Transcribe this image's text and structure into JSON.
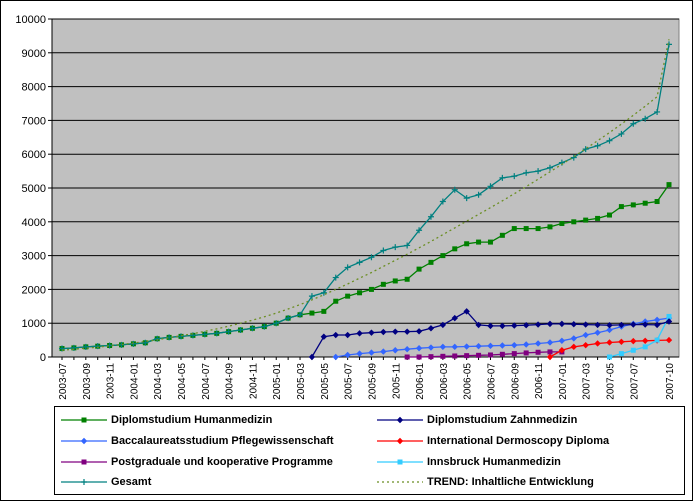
{
  "chart_data": {
    "type": "line",
    "title": "",
    "xlabel": "",
    "ylabel": "",
    "ylim": [
      0,
      10000
    ],
    "yticks": [
      0,
      1000,
      2000,
      3000,
      4000,
      5000,
      6000,
      7000,
      8000,
      9000,
      10000
    ],
    "grid": "horizontal",
    "legend_position": "bottom",
    "plot_background": "#C0C0C0",
    "x_tick_labels": [
      "2003-07",
      "2003-09",
      "2003-11",
      "2004-01",
      "2004-03",
      "2004-05",
      "2004-07",
      "2004-09",
      "2004-11",
      "2005-01",
      "2005-03",
      "2005-05",
      "2005-07",
      "2005-09",
      "2005-11",
      "2006-01",
      "2006-03",
      "2006-05",
      "2006-07",
      "2006-09",
      "2006-11",
      "2007-01",
      "2007-03",
      "2007-05",
      "2007-07",
      "2007-10"
    ],
    "n_points": 52,
    "series": [
      {
        "name": "Diplomstudium Humanmedizin",
        "color": "#008000",
        "marker": "square",
        "start_index": 0,
        "values": [
          250,
          270,
          300,
          320,
          340,
          360,
          390,
          420,
          540,
          580,
          610,
          640,
          670,
          700,
          750,
          800,
          850,
          900,
          1000,
          1150,
          1250,
          1300,
          1350,
          1650,
          1800,
          1900,
          2000,
          2150,
          2250,
          2300,
          2600,
          2800,
          3000,
          3200,
          3350,
          3400,
          3400,
          3600,
          3800,
          3800,
          3800,
          3850,
          3950,
          4000,
          4050,
          4100,
          4200,
          4450,
          4500,
          4550,
          4600,
          5100
        ]
      },
      {
        "name": "Diplomstudium Zahnmedizin",
        "color": "#000080",
        "marker": "diamond",
        "start_index": 21,
        "values": [
          0,
          600,
          650,
          650,
          700,
          720,
          740,
          750,
          750,
          760,
          850,
          950,
          1150,
          1350,
          950,
          920,
          920,
          930,
          940,
          960,
          980,
          980,
          970,
          960,
          950,
          940,
          950,
          960,
          960,
          950,
          1050
        ]
      },
      {
        "name": "Baccalaureatsstudium Pflegewissenschaft",
        "color": "#3366FF",
        "marker": "diamond",
        "start_index": 23,
        "values": [
          0,
          60,
          100,
          130,
          160,
          200,
          230,
          260,
          280,
          300,
          300,
          310,
          320,
          330,
          340,
          350,
          370,
          400,
          430,
          480,
          550,
          650,
          720,
          800,
          900,
          980,
          1050,
          1100,
          1150
        ]
      },
      {
        "name": "International Dermoscopy Diploma",
        "color": "#FF0000",
        "marker": "diamond",
        "start_index": 41,
        "values": [
          0,
          200,
          300,
          350,
          400,
          430,
          450,
          470,
          480,
          490,
          500
        ]
      },
      {
        "name": "Postgraduale und kooperative Programme",
        "color": "#800080",
        "marker": "square",
        "start_index": 29,
        "values": [
          0,
          0,
          10,
          20,
          30,
          40,
          50,
          60,
          80,
          100,
          120,
          140,
          150,
          150
        ]
      },
      {
        "name": "Innsbruck Humanmedizin",
        "color": "#33CCFF",
        "marker": "square",
        "start_index": 46,
        "values": [
          0,
          100,
          200,
          300,
          500,
          1200
        ]
      },
      {
        "name": "Gesamt",
        "color": "#008080",
        "marker": "cross",
        "start_index": 0,
        "values": [
          250,
          270,
          300,
          320,
          340,
          360,
          390,
          420,
          540,
          580,
          610,
          640,
          670,
          700,
          750,
          800,
          850,
          900,
          1000,
          1150,
          1250,
          1800,
          1900,
          2350,
          2650,
          2800,
          2950,
          3150,
          3250,
          3300,
          3750,
          4150,
          4600,
          4950,
          4700,
          4800,
          5050,
          5300,
          5350,
          5450,
          5500,
          5600,
          5750,
          5900,
          6150,
          6250,
          6400,
          6600,
          6900,
          7050,
          7250,
          9250
        ]
      },
      {
        "name": "TREND: Inhaltliche Entwicklung",
        "color": "#6B8E23",
        "marker": "dotted",
        "start_index": 0,
        "values": [
          200,
          230,
          260,
          290,
          330,
          370,
          410,
          460,
          510,
          570,
          630,
          690,
          760,
          830,
          910,
          1000,
          1090,
          1190,
          1300,
          1420,
          1550,
          1690,
          1840,
          2000,
          2160,
          2330,
          2500,
          2680,
          2860,
          3040,
          3230,
          3420,
          3620,
          3820,
          4020,
          4220,
          4420,
          4620,
          4830,
          5040,
          5260,
          5480,
          5700,
          5930,
          6160,
          6400,
          6640,
          6890,
          7150,
          7420,
          7700,
          9400
        ]
      }
    ]
  }
}
